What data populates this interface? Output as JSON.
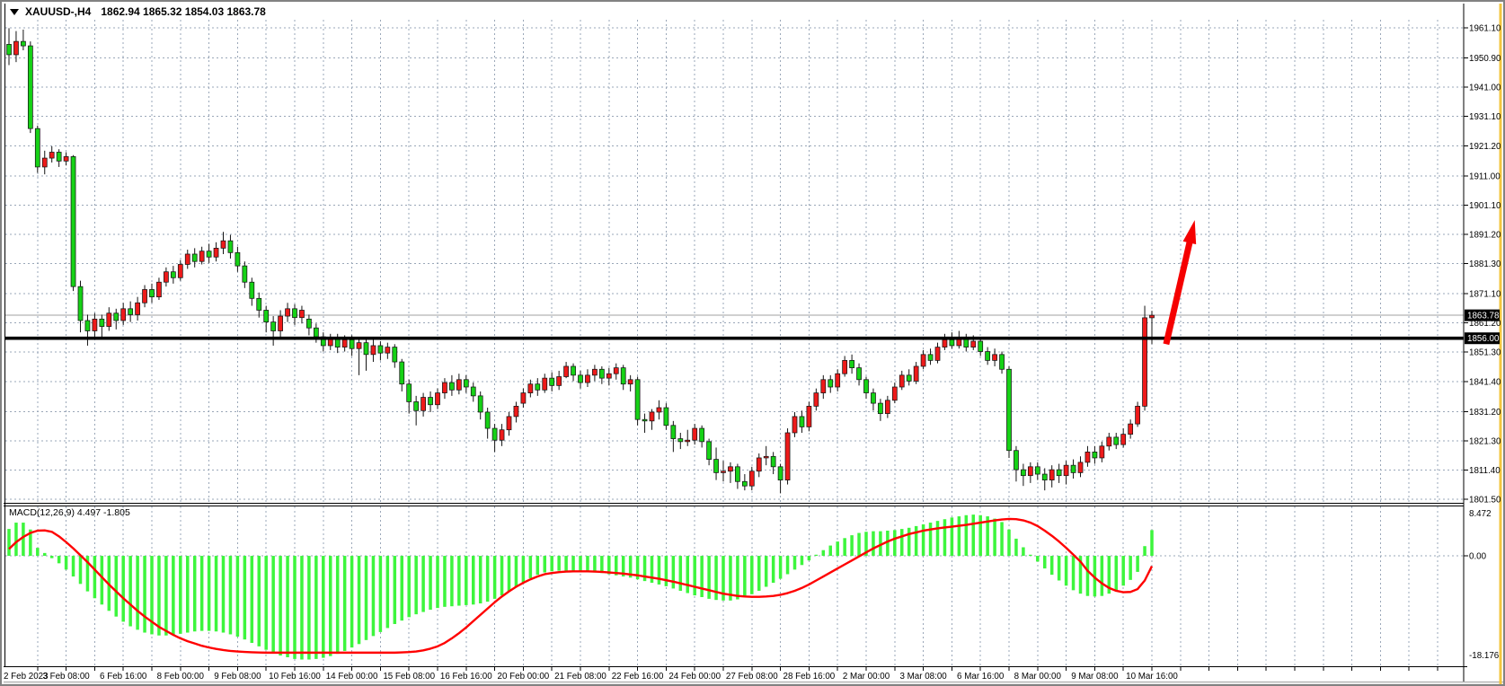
{
  "window": {
    "symbol_period": "XAUUSD-,H4",
    "ohlc_string": "1862.94 1865.32 1854.03 1863.78"
  },
  "indicator": {
    "label": "MACD(12,26,9) 4.497 -1.805"
  },
  "price_axis": {
    "labels": [
      "1961.10",
      "1950.90",
      "1941.00",
      "1931.10",
      "1921.20",
      "1911.00",
      "1901.10",
      "1891.20",
      "1881.30",
      "1871.10",
      "1861.20",
      "1851.30",
      "1841.40",
      "1831.20",
      "1821.30",
      "1811.40",
      "1801.50"
    ],
    "current_price_badge": "1863.78",
    "line_level_badge": "1856.00"
  },
  "macd_axis": {
    "max_label": "8.472",
    "zero_label": "0.00",
    "min_label": "-18.176"
  },
  "time_axis": {
    "labels": [
      "2 Feb 2023",
      "3 Feb 08:00",
      "6 Feb 16:00",
      "8 Feb 00:00",
      "9 Feb 08:00",
      "10 Feb 16:00",
      "14 Feb 00:00",
      "15 Feb 08:00",
      "16 Feb 16:00",
      "20 Feb 00:00",
      "21 Feb 08:00",
      "22 Feb 16:00",
      "24 Feb 00:00",
      "27 Feb 08:00",
      "28 Feb 16:00",
      "2 Mar 00:00",
      "3 Mar 08:00",
      "6 Mar 16:00",
      "8 Mar 00:00",
      "9 Mar 08:00",
      "10 Mar 16:00"
    ]
  },
  "colors": {
    "bull_body": "#ee1a1a",
    "bear_body": "#16d216",
    "wick": "#141414",
    "grid": "#9aa7b8",
    "macd_histogram": "#3df53d",
    "macd_signal": "#ff0000",
    "level_line": "#000000",
    "bid_line": "#a0a0a0",
    "badge_bg": "#000000",
    "badge_text": "#ffffff",
    "accent_strip": "#f3c63f",
    "axis_text": "#000000"
  },
  "chart_data": {
    "type": "candlestick",
    "title": "XAUUSD-,H4",
    "timeframe": "H4",
    "current_bar": {
      "open": 1862.94,
      "high": 1865.32,
      "low": 1854.03,
      "close": 1863.78
    },
    "price_gridlines": [
      1961.1,
      1950.9,
      1941.0,
      1931.1,
      1921.2,
      1911.0,
      1901.1,
      1891.2,
      1881.3,
      1871.1,
      1861.2,
      1851.3,
      1841.4,
      1831.2,
      1821.3,
      1811.4,
      1801.5
    ],
    "horizontal_line_level": 1856.0,
    "bid_line_level": 1863.78,
    "trend_arrow": {
      "start_index": 162,
      "start_price": 1854.0,
      "end_index": 166,
      "end_price": 1896.0
    },
    "candles": [
      [
        1955.5,
        1961.0,
        1948.5,
        1952.0
      ],
      [
        1952.0,
        1960.0,
        1949.5,
        1956.5
      ],
      [
        1956.5,
        1960.5,
        1953.5,
        1955.0
      ],
      [
        1955.0,
        1956.5,
        1925.5,
        1927.0
      ],
      [
        1927.0,
        1928.0,
        1912.0,
        1914.0
      ],
      [
        1914.0,
        1919.5,
        1911.5,
        1917.0
      ],
      [
        1917.0,
        1921.0,
        1915.5,
        1919.0
      ],
      [
        1919.0,
        1920.0,
        1914.0,
        1916.0
      ],
      [
        1916.0,
        1919.0,
        1914.5,
        1917.5
      ],
      [
        1917.5,
        1918.0,
        1872.0,
        1873.5
      ],
      [
        1873.5,
        1875.5,
        1858.0,
        1862.0
      ],
      [
        1862.0,
        1864.0,
        1853.5,
        1858.5
      ],
      [
        1858.5,
        1864.5,
        1856.0,
        1862.5
      ],
      [
        1862.5,
        1864.0,
        1856.5,
        1860.0
      ],
      [
        1860.0,
        1866.5,
        1858.5,
        1864.5
      ],
      [
        1864.5,
        1866.0,
        1859.0,
        1862.0
      ],
      [
        1862.0,
        1868.0,
        1860.5,
        1866.0
      ],
      [
        1866.0,
        1868.5,
        1861.5,
        1864.0
      ],
      [
        1864.0,
        1870.0,
        1862.0,
        1868.0
      ],
      [
        1868.0,
        1874.0,
        1866.5,
        1872.5
      ],
      [
        1872.5,
        1874.5,
        1868.0,
        1870.0
      ],
      [
        1870.0,
        1876.5,
        1869.0,
        1875.0
      ],
      [
        1875.0,
        1880.0,
        1873.5,
        1878.5
      ],
      [
        1878.5,
        1880.5,
        1874.5,
        1876.5
      ],
      [
        1876.5,
        1882.5,
        1875.5,
        1881.0
      ],
      [
        1881.0,
        1886.0,
        1879.5,
        1884.5
      ],
      [
        1884.5,
        1886.5,
        1880.0,
        1882.0
      ],
      [
        1882.0,
        1887.0,
        1881.0,
        1885.5
      ],
      [
        1885.5,
        1888.0,
        1881.5,
        1883.5
      ],
      [
        1883.5,
        1888.5,
        1882.0,
        1886.5
      ],
      [
        1886.5,
        1892.0,
        1884.5,
        1889.0
      ],
      [
        1889.0,
        1891.0,
        1883.0,
        1885.0
      ],
      [
        1885.0,
        1887.0,
        1878.5,
        1880.5
      ],
      [
        1880.5,
        1882.0,
        1873.0,
        1875.0
      ],
      [
        1875.0,
        1876.5,
        1867.0,
        1869.5
      ],
      [
        1869.5,
        1871.5,
        1863.0,
        1865.5
      ],
      [
        1865.5,
        1867.0,
        1858.0,
        1861.5
      ],
      [
        1861.5,
        1863.5,
        1853.5,
        1858.5
      ],
      [
        1858.5,
        1865.5,
        1856.5,
        1863.5
      ],
      [
        1863.5,
        1868.0,
        1861.5,
        1866.0
      ],
      [
        1866.0,
        1867.5,
        1860.5,
        1863.0
      ],
      [
        1863.0,
        1867.0,
        1861.0,
        1865.5
      ],
      [
        1862.5,
        1864.0,
        1857.0,
        1859.5
      ],
      [
        1859.5,
        1861.0,
        1854.5,
        1856.5
      ],
      [
        1856.5,
        1858.0,
        1851.5,
        1853.5
      ],
      [
        1853.5,
        1857.5,
        1852.0,
        1856.0
      ],
      [
        1856.0,
        1857.5,
        1851.0,
        1853.0
      ],
      [
        1853.0,
        1857.0,
        1851.5,
        1855.5
      ],
      [
        1855.5,
        1857.0,
        1850.0,
        1852.5
      ],
      [
        1852.5,
        1856.5,
        1843.5,
        1854.5
      ],
      [
        1854.5,
        1856.0,
        1845.0,
        1850.5
      ],
      [
        1850.5,
        1855.5,
        1848.0,
        1853.5
      ],
      [
        1853.5,
        1855.0,
        1848.5,
        1851.0
      ],
      [
        1851.0,
        1854.5,
        1849.0,
        1853.0
      ],
      [
        1853.0,
        1854.0,
        1846.0,
        1848.0
      ],
      [
        1848.0,
        1849.0,
        1838.0,
        1840.5
      ],
      [
        1840.5,
        1842.0,
        1830.5,
        1834.5
      ],
      [
        1834.5,
        1836.5,
        1826.5,
        1831.5
      ],
      [
        1831.5,
        1837.5,
        1829.5,
        1836.0
      ],
      [
        1836.0,
        1838.0,
        1831.0,
        1833.5
      ],
      [
        1833.5,
        1839.0,
        1832.0,
        1837.5
      ],
      [
        1837.5,
        1842.5,
        1835.5,
        1841.0
      ],
      [
        1841.0,
        1843.5,
        1836.5,
        1838.5
      ],
      [
        1838.5,
        1844.0,
        1837.0,
        1842.0
      ],
      [
        1842.0,
        1843.5,
        1837.5,
        1839.5
      ],
      [
        1839.5,
        1841.0,
        1834.5,
        1836.5
      ],
      [
        1836.5,
        1838.0,
        1828.5,
        1831.0
      ],
      [
        1831.0,
        1832.5,
        1822.0,
        1825.5
      ],
      [
        1825.5,
        1827.0,
        1817.5,
        1821.5
      ],
      [
        1821.5,
        1827.0,
        1819.5,
        1825.0
      ],
      [
        1825.0,
        1831.0,
        1823.0,
        1829.5
      ],
      [
        1829.5,
        1834.5,
        1827.5,
        1833.0
      ],
      [
        1834.0,
        1839.0,
        1832.5,
        1837.5
      ],
      [
        1837.5,
        1842.0,
        1836.0,
        1840.5
      ],
      [
        1840.5,
        1842.5,
        1836.5,
        1838.5
      ],
      [
        1838.5,
        1844.0,
        1837.5,
        1842.5
      ],
      [
        1842.5,
        1844.5,
        1838.0,
        1840.0
      ],
      [
        1840.0,
        1845.0,
        1838.5,
        1843.0
      ],
      [
        1843.0,
        1848.0,
        1842.5,
        1846.5
      ],
      [
        1846.5,
        1847.5,
        1841.5,
        1843.5
      ],
      [
        1843.5,
        1845.0,
        1839.0,
        1841.0
      ],
      [
        1841.0,
        1845.5,
        1839.5,
        1843.5
      ],
      [
        1843.5,
        1847.0,
        1841.5,
        1845.5
      ],
      [
        1845.5,
        1846.5,
        1840.5,
        1842.5
      ],
      [
        1842.5,
        1846.0,
        1840.0,
        1844.0
      ],
      [
        1844.0,
        1847.5,
        1842.0,
        1846.0
      ],
      [
        1846.0,
        1847.0,
        1838.5,
        1840.5
      ],
      [
        1840.5,
        1843.5,
        1838.0,
        1842.0
      ],
      [
        1842.0,
        1843.0,
        1826.5,
        1828.5
      ],
      [
        1828.5,
        1830.5,
        1824.0,
        1828.0
      ],
      [
        1828.0,
        1832.0,
        1825.0,
        1831.0
      ],
      [
        1831.0,
        1835.0,
        1828.5,
        1832.5
      ],
      [
        1832.5,
        1834.0,
        1825.0,
        1826.5
      ],
      [
        1826.5,
        1828.0,
        1817.5,
        1822.0
      ],
      [
        1822.0,
        1824.0,
        1818.5,
        1821.0
      ],
      [
        1821.0,
        1825.0,
        1819.5,
        1821.5
      ],
      [
        1821.5,
        1827.0,
        1820.0,
        1825.5
      ],
      [
        1825.5,
        1826.5,
        1819.0,
        1821.0
      ],
      [
        1821.0,
        1822.0,
        1813.0,
        1815.0
      ],
      [
        1815.0,
        1819.0,
        1808.0,
        1810.5
      ],
      [
        1810.5,
        1814.5,
        1807.5,
        1811.0
      ],
      [
        1811.0,
        1814.0,
        1807.0,
        1812.5
      ],
      [
        1812.5,
        1813.5,
        1805.0,
        1807.5
      ],
      [
        1807.5,
        1810.0,
        1804.5,
        1806.0
      ],
      [
        1806.0,
        1812.5,
        1804.5,
        1811.0
      ],
      [
        1811.0,
        1817.0,
        1809.0,
        1815.5
      ],
      [
        1815.5,
        1819.5,
        1813.0,
        1816.0
      ],
      [
        1816.0,
        1817.5,
        1810.0,
        1812.5
      ],
      [
        1812.5,
        1813.5,
        1803.5,
        1808.0
      ],
      [
        1808.0,
        1825.5,
        1806.5,
        1824.0
      ],
      [
        1824.0,
        1831.0,
        1822.5,
        1829.5
      ],
      [
        1829.5,
        1831.5,
        1824.0,
        1826.0
      ],
      [
        1826.0,
        1834.5,
        1824.5,
        1833.0
      ],
      [
        1833.0,
        1839.0,
        1831.5,
        1837.5
      ],
      [
        1837.5,
        1843.5,
        1835.5,
        1842.0
      ],
      [
        1842.0,
        1843.5,
        1837.5,
        1839.5
      ],
      [
        1839.5,
        1845.5,
        1838.0,
        1844.0
      ],
      [
        1844.0,
        1850.0,
        1843.0,
        1848.5
      ],
      [
        1848.5,
        1850.5,
        1844.0,
        1846.0
      ],
      [
        1846.0,
        1847.5,
        1840.0,
        1842.0
      ],
      [
        1842.0,
        1843.0,
        1835.5,
        1837.5
      ],
      [
        1837.5,
        1839.0,
        1831.5,
        1834.0
      ],
      [
        1834.0,
        1835.5,
        1828.0,
        1830.5
      ],
      [
        1830.5,
        1836.5,
        1829.0,
        1835.0
      ],
      [
        1835.0,
        1841.0,
        1834.0,
        1839.5
      ],
      [
        1839.5,
        1845.0,
        1838.5,
        1843.5
      ],
      [
        1843.5,
        1845.5,
        1840.0,
        1841.5
      ],
      [
        1841.5,
        1848.0,
        1840.5,
        1846.5
      ],
      [
        1846.5,
        1852.0,
        1845.5,
        1850.5
      ],
      [
        1850.5,
        1852.5,
        1847.0,
        1848.5
      ],
      [
        1848.5,
        1854.5,
        1847.5,
        1853.0
      ],
      [
        1853.0,
        1857.5,
        1852.0,
        1855.5
      ],
      [
        1855.5,
        1858.0,
        1852.5,
        1853.5
      ],
      [
        1853.5,
        1858.5,
        1852.5,
        1856.0
      ],
      [
        1856.0,
        1857.5,
        1851.5,
        1853.0
      ],
      [
        1853.0,
        1857.0,
        1852.0,
        1855.0
      ],
      [
        1855.0,
        1856.5,
        1850.0,
        1851.5
      ],
      [
        1851.5,
        1853.0,
        1847.0,
        1848.5
      ],
      [
        1848.5,
        1852.5,
        1846.5,
        1850.5
      ],
      [
        1850.5,
        1851.5,
        1844.0,
        1845.5
      ],
      [
        1845.5,
        1846.5,
        1815.5,
        1818.0
      ],
      [
        1818.0,
        1819.5,
        1807.5,
        1811.5
      ],
      [
        1811.5,
        1813.5,
        1806.0,
        1809.5
      ],
      [
        1809.5,
        1814.0,
        1807.0,
        1812.5
      ],
      [
        1812.5,
        1814.0,
        1808.0,
        1810.0
      ],
      [
        1810.0,
        1812.0,
        1804.5,
        1808.0
      ],
      [
        1808.0,
        1813.0,
        1805.5,
        1811.5
      ],
      [
        1811.5,
        1813.5,
        1807.0,
        1809.5
      ],
      [
        1809.5,
        1814.5,
        1806.5,
        1813.0
      ],
      [
        1813.0,
        1815.0,
        1808.5,
        1810.5
      ],
      [
        1810.5,
        1816.0,
        1809.0,
        1814.0
      ],
      [
        1814.0,
        1819.5,
        1812.5,
        1817.5
      ],
      [
        1817.5,
        1819.5,
        1813.5,
        1815.5
      ],
      [
        1815.5,
        1821.0,
        1814.0,
        1819.5
      ],
      [
        1819.5,
        1824.0,
        1818.0,
        1822.5
      ],
      [
        1822.5,
        1824.0,
        1818.5,
        1820.0
      ],
      [
        1820.0,
        1825.5,
        1819.0,
        1823.5
      ],
      [
        1823.5,
        1828.5,
        1822.0,
        1827.0
      ],
      [
        1827.0,
        1834.5,
        1826.0,
        1833.0
      ],
      [
        1833.0,
        1867.0,
        1831.5,
        1862.94
      ],
      [
        1862.94,
        1865.32,
        1854.03,
        1863.78
      ]
    ],
    "macd": {
      "params": "12,26,9",
      "main_value": 4.497,
      "signal_value": -1.805,
      "scale_max": 8.472,
      "scale_min": -18.176,
      "histogram": [
        4.7,
        5.8,
        5.8,
        4.6,
        1.4,
        0.5,
        -0.4,
        -1.3,
        -2.4,
        -3.6,
        -4.9,
        -6.2,
        -7.4,
        -8.5,
        -9.6,
        -10.6,
        -11.5,
        -12.3,
        -12.9,
        -13.4,
        -13.7,
        -13.9,
        -13.9,
        -13.8,
        -13.6,
        -13.4,
        -13.2,
        -13.1,
        -13.1,
        -13.2,
        -13.4,
        -13.7,
        -14.1,
        -14.6,
        -15.2,
        -15.8,
        -16.4,
        -16.9,
        -17.4,
        -17.7,
        -18.0,
        -18.1,
        -18.1,
        -18.0,
        -17.8,
        -17.5,
        -17.1,
        -16.6,
        -16.0,
        -15.4,
        -14.7,
        -14.0,
        -13.3,
        -12.6,
        -11.9,
        -11.3,
        -10.7,
        -10.2,
        -9.8,
        -9.4,
        -9.1,
        -8.9,
        -8.8,
        -8.7,
        -8.6,
        -8.5,
        -8.3,
        -8.0,
        -7.5,
        -6.9,
        -6.2,
        -5.4,
        -4.6,
        -3.9,
        -3.3,
        -2.9,
        -2.7,
        -2.6,
        -2.6,
        -2.6,
        -2.7,
        -2.8,
        -2.9,
        -3.0,
        -3.2,
        -3.4,
        -3.6,
        -3.8,
        -4.1,
        -4.4,
        -4.7,
        -5.0,
        -5.3,
        -5.7,
        -6.1,
        -6.5,
        -6.9,
        -7.2,
        -7.5,
        -7.7,
        -7.8,
        -7.8,
        -7.6,
        -7.2,
        -6.7,
        -6.1,
        -5.4,
        -4.7,
        -4.0,
        -3.2,
        -2.4,
        -1.6,
        -0.8,
        0.2,
        1.0,
        1.8,
        2.5,
        3.1,
        3.6,
        4.0,
        4.2,
        4.3,
        4.3,
        4.4,
        4.5,
        4.7,
        4.9,
        5.2,
        5.5,
        5.8,
        6.1,
        6.4,
        6.7,
        6.9,
        7.1,
        7.2,
        7.1,
        6.9,
        6.5,
        5.9,
        4.6,
        3.0,
        1.5,
        0.2,
        -1.0,
        -2.2,
        -3.3,
        -4.3,
        -5.2,
        -6.0,
        -6.6,
        -7.0,
        -7.1,
        -7.0,
        -6.6,
        -6.0,
        -5.2,
        -4.2,
        -2.8,
        1.7,
        4.497
      ],
      "signal": [
        1.2,
        2.4,
        3.3,
        4.0,
        4.4,
        4.45,
        4.2,
        3.4,
        2.4,
        1.3,
        0.1,
        -1.1,
        -2.4,
        -3.7,
        -5.0,
        -6.2,
        -7.4,
        -8.5,
        -9.6,
        -10.6,
        -11.5,
        -12.4,
        -13.1,
        -13.8,
        -14.4,
        -14.9,
        -15.3,
        -15.7,
        -16.0,
        -16.25,
        -16.45,
        -16.6,
        -16.7,
        -16.78,
        -16.84,
        -16.88,
        -16.9,
        -16.9,
        -16.9,
        -16.9,
        -16.9,
        -16.9,
        -16.9,
        -16.9,
        -16.9,
        -16.9,
        -16.9,
        -16.9,
        -16.9,
        -16.9,
        -16.9,
        -16.9,
        -16.9,
        -16.9,
        -16.9,
        -16.85,
        -16.8,
        -16.7,
        -16.5,
        -16.2,
        -15.8,
        -15.2,
        -14.4,
        -13.5,
        -12.5,
        -11.4,
        -10.3,
        -9.2,
        -8.1,
        -7.1,
        -6.2,
        -5.4,
        -4.7,
        -4.1,
        -3.6,
        -3.2,
        -3.0,
        -2.85,
        -2.75,
        -2.7,
        -2.7,
        -2.7,
        -2.75,
        -2.8,
        -2.9,
        -3.0,
        -3.1,
        -3.25,
        -3.4,
        -3.6,
        -3.8,
        -4.0,
        -4.25,
        -4.5,
        -4.8,
        -5.1,
        -5.4,
        -5.7,
        -6.0,
        -6.3,
        -6.6,
        -6.8,
        -7.0,
        -7.1,
        -7.15,
        -7.15,
        -7.1,
        -7.0,
        -6.8,
        -6.5,
        -6.1,
        -5.6,
        -5.0,
        -4.3,
        -3.6,
        -2.9,
        -2.2,
        -1.5,
        -0.8,
        -0.1,
        0.6,
        1.3,
        1.9,
        2.5,
        3.0,
        3.4,
        3.8,
        4.1,
        4.4,
        4.6,
        4.8,
        4.95,
        5.1,
        5.25,
        5.4,
        5.6,
        5.8,
        6.0,
        6.2,
        6.35,
        6.45,
        6.4,
        6.2,
        5.8,
        5.2,
        4.4,
        3.5,
        2.5,
        1.4,
        0.2,
        -1.0,
        -2.6,
        -3.8,
        -4.8,
        -5.6,
        -6.1,
        -6.35,
        -6.3,
        -5.8,
        -4.3,
        -1.805
      ]
    }
  }
}
